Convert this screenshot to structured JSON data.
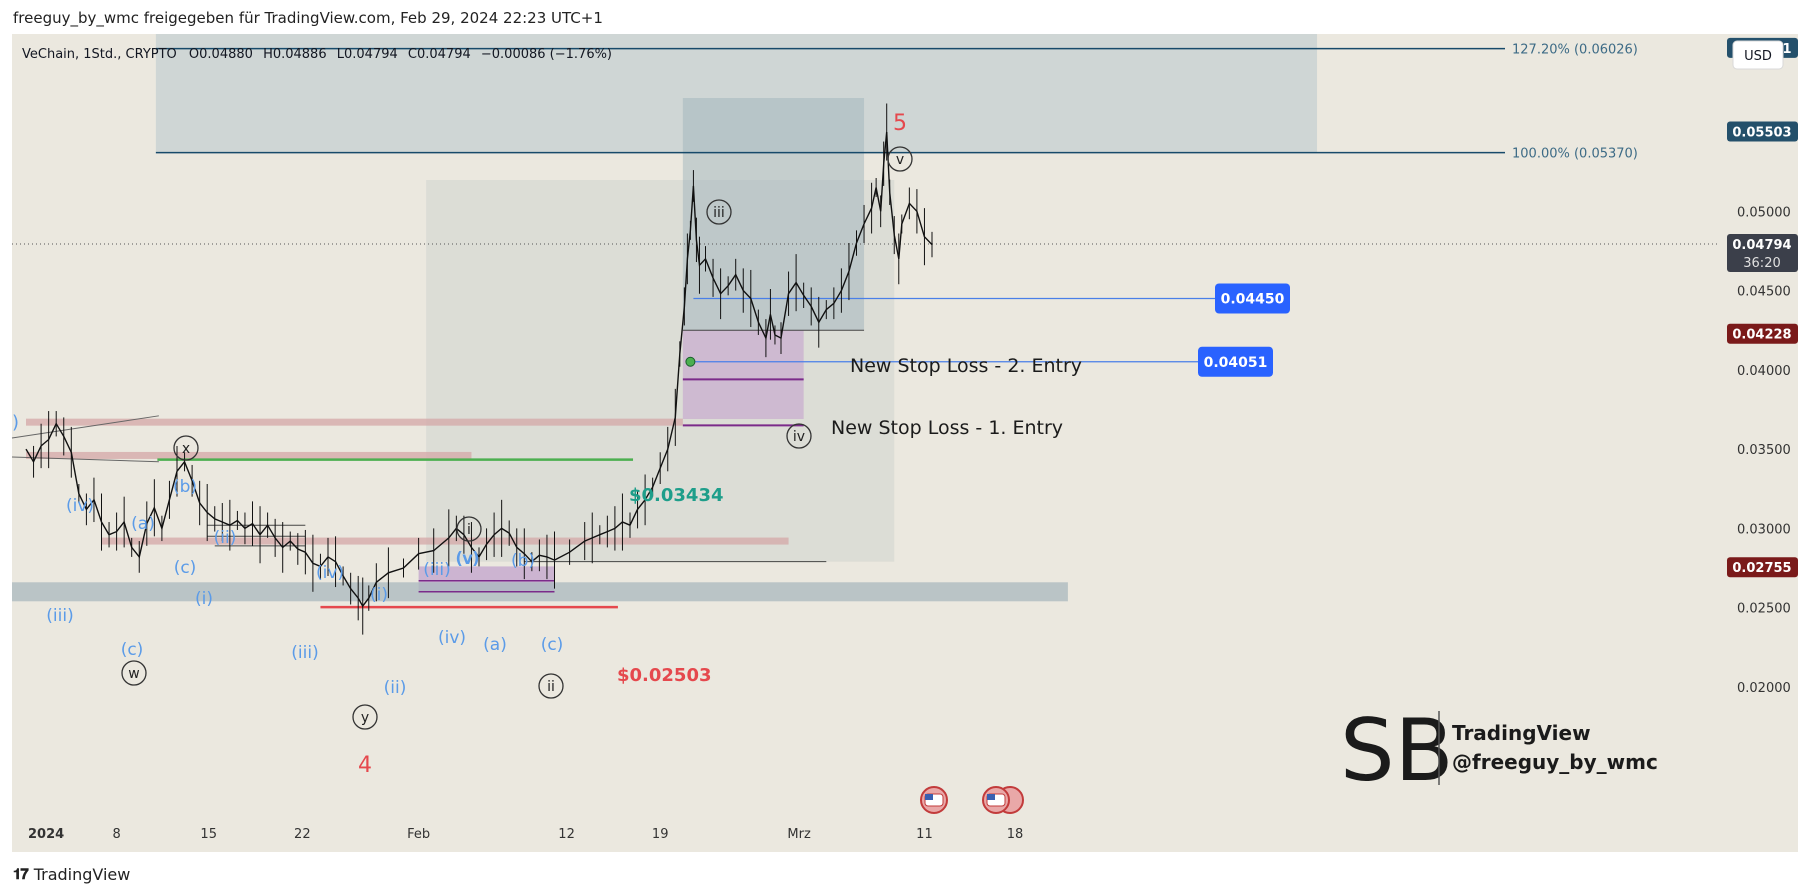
{
  "header": {
    "text": "freeguy_by_wmc freigegeben für TradingView.com, Feb 29, 2024 22:23 UTC+1"
  },
  "footer": {
    "brand": "TradingView",
    "logo_icon": "tradingview-logo-icon"
  },
  "colors": {
    "background": "#ebe8df",
    "candle": "#000000",
    "fib_zone": "#b8c7cc",
    "fib_line": "#174a6a",
    "wave_blue": "#5b9be8",
    "wave_red": "#e5484d",
    "support": "#4caf50",
    "entry_badge": "#2962ff",
    "price_dark": "#24506b",
    "price_red": "#7a1a1a"
  },
  "chart_data": {
    "type": "line",
    "title": "VeChain, 1Std., CRYPTO",
    "ohlc": {
      "open": "O0.04880",
      "high": "H0.04886",
      "low": "L0.04794",
      "close": "C0.04794",
      "change": "−0.00086 (−1.76%)"
    },
    "currency": "USD",
    "xlabel": "",
    "ylabel": "",
    "x_ticks": [
      "2024",
      "8",
      "15",
      "22",
      "Feb",
      "12",
      "19",
      "Mrz",
      "11",
      "18"
    ],
    "y_ticks": [
      "0.05000",
      "0.04500",
      "0.04000",
      "0.03500",
      "0.03000",
      "0.02500",
      "0.02000"
    ],
    "ylim": [
      0.0165,
      0.0638
    ],
    "grid": false,
    "series": [
      {
        "values": [
          [
            0,
            0.035
          ],
          [
            0.5,
            0.0342
          ],
          [
            1,
            0.0352
          ],
          [
            1.5,
            0.0356
          ],
          [
            2,
            0.0366
          ],
          [
            2.5,
            0.0358
          ],
          [
            3,
            0.0348
          ],
          [
            3.5,
            0.0322
          ],
          [
            4,
            0.0312
          ],
          [
            4.5,
            0.0318
          ],
          [
            5,
            0.0304
          ],
          [
            5.5,
            0.0296
          ],
          [
            6,
            0.0298
          ],
          [
            6.5,
            0.0304
          ],
          [
            7,
            0.0288
          ],
          [
            7.5,
            0.0282
          ],
          [
            8,
            0.0303
          ],
          [
            8.5,
            0.0313
          ],
          [
            9,
            0.03
          ],
          [
            9.5,
            0.0318
          ],
          [
            10,
            0.0336
          ],
          [
            10.5,
            0.0342
          ],
          [
            11,
            0.033
          ],
          [
            11.5,
            0.0316
          ],
          [
            12,
            0.031
          ],
          [
            12.5,
            0.0306
          ],
          [
            13,
            0.0304
          ],
          [
            13.5,
            0.0302
          ],
          [
            14,
            0.0305
          ],
          [
            14.5,
            0.03
          ],
          [
            15,
            0.0303
          ],
          [
            15.5,
            0.0296
          ],
          [
            16,
            0.0302
          ],
          [
            16.5,
            0.0294
          ],
          [
            17,
            0.0288
          ],
          [
            17.5,
            0.0292
          ],
          [
            18,
            0.0287
          ],
          [
            18.5,
            0.0285
          ],
          [
            19,
            0.0278
          ],
          [
            19.5,
            0.0276
          ],
          [
            20,
            0.0282
          ],
          [
            20.5,
            0.0279
          ],
          [
            21,
            0.027
          ],
          [
            21.5,
            0.0262
          ],
          [
            22,
            0.0256
          ],
          [
            22.3,
            0.0251
          ],
          [
            22.7,
            0.0256
          ],
          [
            23.2,
            0.0266
          ],
          [
            24,
            0.0272
          ],
          [
            25,
            0.0275
          ],
          [
            26,
            0.0284
          ],
          [
            27,
            0.0286
          ],
          [
            28,
            0.0294
          ],
          [
            28.5,
            0.03
          ],
          [
            29,
            0.0296
          ],
          [
            29.5,
            0.0288
          ],
          [
            30,
            0.0282
          ],
          [
            30.5,
            0.029
          ],
          [
            31,
            0.0296
          ],
          [
            31.5,
            0.03
          ],
          [
            32,
            0.0297
          ],
          [
            32.5,
            0.0288
          ],
          [
            33,
            0.0284
          ],
          [
            33.5,
            0.0279
          ],
          [
            34,
            0.0283
          ],
          [
            34.5,
            0.0282
          ],
          [
            35,
            0.028
          ],
          [
            36,
            0.0285
          ],
          [
            37,
            0.0292
          ],
          [
            37.5,
            0.0294
          ],
          [
            38,
            0.0296
          ],
          [
            38.5,
            0.0298
          ],
          [
            39,
            0.03
          ],
          [
            39.5,
            0.0304
          ],
          [
            40,
            0.0302
          ],
          [
            40.5,
            0.0312
          ],
          [
            41,
            0.0318
          ],
          [
            41.5,
            0.0326
          ],
          [
            42,
            0.0338
          ],
          [
            42.5,
            0.035
          ],
          [
            43,
            0.037
          ],
          [
            43.3,
            0.041
          ],
          [
            43.6,
            0.044
          ],
          [
            43.8,
            0.047
          ],
          [
            44,
            0.0488
          ],
          [
            44.2,
            0.0516
          ],
          [
            44.4,
            0.0482
          ],
          [
            44.6,
            0.0466
          ],
          [
            45,
            0.047
          ],
          [
            45.5,
            0.0458
          ],
          [
            46,
            0.0448
          ],
          [
            46.5,
            0.0453
          ],
          [
            47,
            0.046
          ],
          [
            47.5,
            0.045
          ],
          [
            48,
            0.0445
          ],
          [
            48.5,
            0.043
          ],
          [
            49,
            0.042
          ],
          [
            49.3,
            0.0435
          ],
          [
            49.6,
            0.0422
          ],
          [
            50,
            0.042
          ],
          [
            50.5,
            0.0448
          ],
          [
            51,
            0.0455
          ],
          [
            51.5,
            0.0447
          ],
          [
            52,
            0.044
          ],
          [
            52.5,
            0.043
          ],
          [
            53,
            0.0438
          ],
          [
            53.5,
            0.0442
          ],
          [
            54,
            0.045
          ],
          [
            54.5,
            0.0462
          ],
          [
            55,
            0.048
          ],
          [
            55.5,
            0.0492
          ],
          [
            56,
            0.0502
          ],
          [
            56.3,
            0.0515
          ],
          [
            56.6,
            0.05
          ],
          [
            56.8,
            0.053
          ],
          [
            57,
            0.055
          ],
          [
            57.2,
            0.0512
          ],
          [
            57.5,
            0.0485
          ],
          [
            57.8,
            0.047
          ],
          [
            58,
            0.0492
          ],
          [
            58.5,
            0.0505
          ],
          [
            59,
            0.05
          ],
          [
            59.5,
            0.0484
          ],
          [
            60,
            0.0479
          ]
        ]
      }
    ],
    "support_zones": [
      0.0367,
      0.0346,
      0.0292
    ],
    "lower_zone": [
      0.0254,
      0.0266
    ],
    "fib_levels": [
      {
        "label": "127.20% (0.06026)",
        "value": 0.06026
      },
      {
        "label": "100.00% (0.05370)",
        "value": 0.0537
      }
    ],
    "horizontal_lines": [
      {
        "label": "$0.03434",
        "value": 0.03434,
        "color": "#1e9e8a"
      },
      {
        "label": "$0.02503",
        "value": 0.02503,
        "color": "#e5484d"
      },
      {
        "label": "0.04450",
        "value": 0.0445
      },
      {
        "label": "0.04051",
        "value": 0.04051
      }
    ],
    "price_labels": [
      "0.06031",
      "0.05503",
      "0.04794",
      "36:20",
      "0.04228",
      "0.02755"
    ],
    "annotations": {
      "stop_loss_2": "New Stop Loss - 2. Entry",
      "stop_loss_1": "New Stop Loss - 1. Entry",
      "wave_5": "5",
      "wave_4": "4",
      "left_edge": ")"
    },
    "wave_labels_blue": [
      "(iv)",
      "(iii)",
      "(a)",
      "(b)",
      "(c)",
      "(ii)",
      "(i)",
      "(iv)",
      "(iii)",
      "(i)",
      "(ii)",
      "(v)",
      "(iii)",
      "(v)",
      "(iv)",
      "(b)",
      "(a)",
      "(c)",
      "(c)"
    ],
    "wave_labels_circled": [
      "x",
      "w",
      "y",
      "i",
      "ii",
      "iii",
      "iv",
      "v"
    ],
    "watermark": {
      "line1": "TradingView",
      "line2": "@freeguy_by_wmc"
    }
  }
}
